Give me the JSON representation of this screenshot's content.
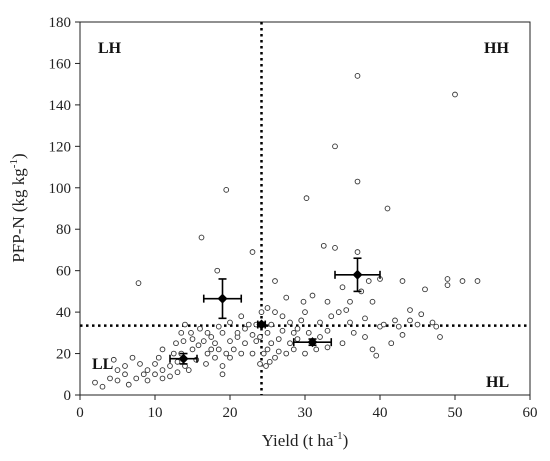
{
  "chart_data": {
    "type": "scatter",
    "title": "",
    "xlabel": "Yield (t ha",
    "xlabel_sup": "-1",
    "xlabel_close": ")",
    "ylabel": "PFP-N (kg kg",
    "ylabel_sup": "-1",
    "ylabel_close": ")",
    "xlim": [
      0,
      60
    ],
    "ylim": [
      0,
      180
    ],
    "xticks": [
      0,
      10,
      20,
      30,
      40,
      50,
      60
    ],
    "yticks": [
      0,
      20,
      40,
      60,
      80,
      100,
      120,
      140,
      160,
      180
    ],
    "grid": false,
    "quadrant_labels": {
      "top_left": "LH",
      "top_right": "HH",
      "bottom_left": "LL",
      "bottom_right": "HL"
    },
    "reference_lines": {
      "x": 24.2,
      "y": 33.5
    },
    "points": [
      [
        2,
        6
      ],
      [
        3,
        4
      ],
      [
        4,
        8
      ],
      [
        4.5,
        17
      ],
      [
        5,
        12
      ],
      [
        5,
        7
      ],
      [
        6,
        14
      ],
      [
        6,
        10
      ],
      [
        6.5,
        5
      ],
      [
        7,
        18
      ],
      [
        7.5,
        8
      ],
      [
        7.8,
        54
      ],
      [
        8,
        15
      ],
      [
        8.5,
        10
      ],
      [
        9,
        12
      ],
      [
        9,
        7
      ],
      [
        10,
        10
      ],
      [
        10,
        15
      ],
      [
        10.5,
        18
      ],
      [
        11,
        8
      ],
      [
        11,
        12
      ],
      [
        11,
        22
      ],
      [
        12,
        14
      ],
      [
        12,
        9
      ],
      [
        12.5,
        20
      ],
      [
        12.8,
        25
      ],
      [
        13,
        16
      ],
      [
        13,
        11
      ],
      [
        13.5,
        30
      ],
      [
        13.5,
        20
      ],
      [
        13.8,
        26
      ],
      [
        14,
        34
      ],
      [
        14,
        14
      ],
      [
        14.5,
        12
      ],
      [
        14.8,
        30
      ],
      [
        15,
        22
      ],
      [
        15,
        27
      ],
      [
        15.5,
        17
      ],
      [
        15.8,
        24
      ],
      [
        16,
        32
      ],
      [
        16.2,
        76
      ],
      [
        16.5,
        26
      ],
      [
        16.8,
        15
      ],
      [
        17,
        20
      ],
      [
        17,
        30
      ],
      [
        17.5,
        22
      ],
      [
        17.5,
        28
      ],
      [
        18,
        18
      ],
      [
        18,
        25
      ],
      [
        18.3,
        60
      ],
      [
        18.5,
        22
      ],
      [
        18.5,
        33
      ],
      [
        19,
        10
      ],
      [
        19,
        14
      ],
      [
        19,
        30
      ],
      [
        19.5,
        99
      ],
      [
        19.5,
        20
      ],
      [
        20,
        26
      ],
      [
        20,
        18
      ],
      [
        20,
        35
      ],
      [
        20.5,
        22
      ],
      [
        21,
        28
      ],
      [
        21,
        30
      ],
      [
        21.5,
        20
      ],
      [
        21.5,
        38
      ],
      [
        22,
        25
      ],
      [
        22,
        32
      ],
      [
        22.5,
        34
      ],
      [
        23,
        20
      ],
      [
        23,
        29
      ],
      [
        23,
        69
      ],
      [
        23.5,
        26
      ],
      [
        23.5,
        34
      ],
      [
        24,
        15
      ],
      [
        24,
        28
      ],
      [
        24.2,
        40
      ],
      [
        24.5,
        20
      ],
      [
        24.8,
        14
      ],
      [
        25,
        30
      ],
      [
        25,
        42
      ],
      [
        25,
        22
      ],
      [
        25.3,
        16
      ],
      [
        25.5,
        25
      ],
      [
        25.5,
        34
      ],
      [
        26,
        18
      ],
      [
        26,
        40
      ],
      [
        26,
        55
      ],
      [
        26.5,
        21
      ],
      [
        26.5,
        27
      ],
      [
        27,
        38
      ],
      [
        27,
        31
      ],
      [
        27.5,
        20
      ],
      [
        27.5,
        47
      ],
      [
        28,
        25
      ],
      [
        28,
        35
      ],
      [
        28.5,
        30
      ],
      [
        28.5,
        22
      ],
      [
        29,
        32
      ],
      [
        29,
        27
      ],
      [
        29.5,
        36
      ],
      [
        29.8,
        45
      ],
      [
        30,
        20
      ],
      [
        30,
        40
      ],
      [
        30.2,
        95
      ],
      [
        30.5,
        30
      ],
      [
        31,
        26
      ],
      [
        31,
        48
      ],
      [
        31.5,
        22
      ],
      [
        32,
        35
      ],
      [
        32,
        28
      ],
      [
        32.5,
        72
      ],
      [
        33,
        31
      ],
      [
        33,
        45
      ],
      [
        33,
        23
      ],
      [
        33.5,
        38
      ],
      [
        34,
        71
      ],
      [
        34,
        120
      ],
      [
        34.5,
        40
      ],
      [
        35,
        52
      ],
      [
        35,
        25
      ],
      [
        35.5,
        41
      ],
      [
        36,
        35
      ],
      [
        36,
        45
      ],
      [
        36.5,
        30
      ],
      [
        37,
        154
      ],
      [
        37,
        103
      ],
      [
        37,
        69
      ],
      [
        37.5,
        50
      ],
      [
        38,
        37
      ],
      [
        38,
        28
      ],
      [
        38.5,
        55
      ],
      [
        39,
        22
      ],
      [
        39,
        45
      ],
      [
        39.5,
        19
      ],
      [
        40,
        33
      ],
      [
        40,
        56
      ],
      [
        40.5,
        34
      ],
      [
        41,
        90
      ],
      [
        41.5,
        25
      ],
      [
        42,
        36
      ],
      [
        42.5,
        33
      ],
      [
        43,
        29
      ],
      [
        43,
        55
      ],
      [
        44,
        41
      ],
      [
        44,
        36
      ],
      [
        45,
        34
      ],
      [
        45.5,
        39
      ],
      [
        46,
        51
      ],
      [
        47,
        35
      ],
      [
        47.5,
        33
      ],
      [
        48,
        28
      ],
      [
        49,
        56
      ],
      [
        49,
        53
      ],
      [
        50,
        145
      ],
      [
        51,
        55
      ],
      [
        53,
        55
      ]
    ],
    "means": [
      {
        "x": 13.8,
        "y": 17.5,
        "x_err": 1.8,
        "y_err": 2.5
      },
      {
        "x": 19,
        "y": 46.5,
        "x_err": 2.5,
        "y_err": 9.5
      },
      {
        "x": 24.2,
        "y": 34,
        "x_err": 0.5,
        "y_err": 1
      },
      {
        "x": 31,
        "y": 25.5,
        "x_err": 2.5,
        "y_err": 1.5
      },
      {
        "x": 37,
        "y": 58,
        "x_err": 3,
        "y_err": 8
      }
    ]
  }
}
